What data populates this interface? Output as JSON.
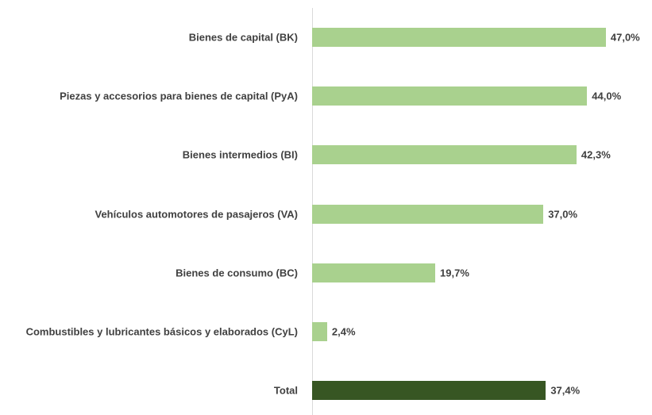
{
  "chart_data": {
    "type": "bar",
    "orientation": "horizontal",
    "categories": [
      "Bienes de capital (BK)",
      "Piezas y accesorios para bienes de capital (PyA)",
      "Bienes intermedios (BI)",
      "Vehículos automotores de pasajeros (VA)",
      "Bienes de consumo (BC)",
      "Combustibles y lubricantes básicos y elaborados (CyL)",
      "Total"
    ],
    "values": [
      47.0,
      44.0,
      42.3,
      37.0,
      19.7,
      2.4,
      37.4
    ],
    "value_labels": [
      "47,0%",
      "44,0%",
      "42,3%",
      "37,0%",
      "19,7%",
      "2,4%",
      "37,4%"
    ],
    "colors": [
      "#a9d18e",
      "#a9d18e",
      "#a9d18e",
      "#a9d18e",
      "#a9d18e",
      "#a9d18e",
      "#375623"
    ]
  }
}
